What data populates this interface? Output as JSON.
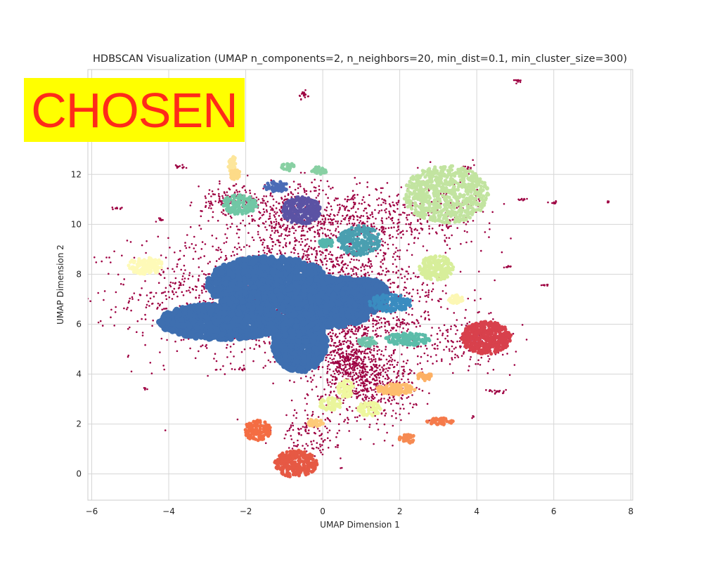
{
  "badge": {
    "text": "CHOSEN",
    "text_color": "#ff2a1a",
    "background": "#ffff00"
  },
  "chart_data": {
    "type": "scatter",
    "title": "HDBSCAN Visualization (UMAP n_components=2, n_neighbors=20, min_dist=0.1, min_cluster_size=300)",
    "xlabel": "UMAP Dimension 1",
    "ylabel": "UMAP Dimension 2",
    "xlim": [
      -6.1,
      8.05
    ],
    "ylim": [
      -1.05,
      16.2
    ],
    "xticks": [
      "−6",
      "−4",
      "−2",
      "0",
      "2",
      "4",
      "6",
      "8"
    ],
    "yticks": [
      "0",
      "2",
      "4",
      "6",
      "8",
      "10",
      "12"
    ],
    "grid": true,
    "noise_color": "#9e0142",
    "clusters": [
      {
        "color": "#3e6fb0",
        "blobs": [
          [
            -2.6,
            6.1,
            1.65,
            0.7,
            1.0
          ],
          [
            -1.4,
            7.6,
            1.6,
            1.1,
            1.2
          ],
          [
            0.2,
            6.9,
            1.3,
            1.0,
            1.0
          ],
          [
            -0.6,
            5.3,
            0.7,
            1.2,
            0.8
          ],
          [
            1.1,
            7.2,
            0.6,
            0.6,
            0.6
          ]
        ]
      },
      {
        "color": "#c2e4a0",
        "center": [
          3.2,
          11.2
        ],
        "size": [
          1.1,
          1.15
        ],
        "count": 700
      },
      {
        "color": "#5b53a4",
        "center": [
          -0.55,
          10.55
        ],
        "size": [
          0.5,
          0.55
        ],
        "count": 260
      },
      {
        "color": "#4a9fb0",
        "center": [
          0.95,
          9.35
        ],
        "size": [
          0.55,
          0.6
        ],
        "count": 220
      },
      {
        "color": "#3a8cc0",
        "center": [
          1.75,
          6.85
        ],
        "size": [
          0.55,
          0.35
        ],
        "count": 150
      },
      {
        "color": "#5cbca9",
        "center": [
          2.2,
          5.4
        ],
        "size": [
          0.6,
          0.25
        ],
        "count": 130
      },
      {
        "color": "#71c7a5",
        "center": [
          -2.15,
          10.8
        ],
        "size": [
          0.45,
          0.4
        ],
        "count": 140
      },
      {
        "color": "#88d0a3",
        "center": [
          -0.9,
          12.3
        ],
        "size": [
          0.18,
          0.15
        ],
        "count": 30
      },
      {
        "color": "#88d0a3",
        "center": [
          -0.1,
          12.15
        ],
        "size": [
          0.2,
          0.15
        ],
        "count": 30
      },
      {
        "color": "#55b6ad",
        "center": [
          0.1,
          9.25
        ],
        "size": [
          0.22,
          0.15
        ],
        "count": 40
      },
      {
        "color": "#6ec3aa",
        "center": [
          1.15,
          5.3
        ],
        "size": [
          0.25,
          0.2
        ],
        "count": 40
      },
      {
        "color": "#4b6cb6",
        "center": [
          -1.2,
          11.5
        ],
        "size": [
          0.3,
          0.22
        ],
        "count": 50
      },
      {
        "color": "#d7ee9a",
        "center": [
          2.95,
          8.25
        ],
        "size": [
          0.45,
          0.5
        ],
        "count": 170
      },
      {
        "color": "#d8414c",
        "center": [
          4.25,
          5.45
        ],
        "size": [
          0.65,
          0.65
        ],
        "count": 420
      },
      {
        "color": "#fefab8",
        "center": [
          -4.6,
          8.35
        ],
        "size": [
          0.45,
          0.35
        ],
        "count": 120
      },
      {
        "color": "#fcf7b4",
        "center": [
          3.45,
          7.0
        ],
        "size": [
          0.2,
          0.17
        ],
        "count": 35
      },
      {
        "color": "#fde69b",
        "center": [
          -2.35,
          12.4
        ],
        "size": [
          0.12,
          0.35
        ],
        "count": 35
      },
      {
        "color": "#fddb88",
        "center": [
          -2.3,
          12.0
        ],
        "size": [
          0.16,
          0.2
        ],
        "count": 30
      },
      {
        "color": "#fdbd6e",
        "center": [
          1.9,
          3.4
        ],
        "size": [
          0.5,
          0.22
        ],
        "count": 110
      },
      {
        "color": "#f0f8a0",
        "center": [
          0.6,
          3.4
        ],
        "size": [
          0.22,
          0.35
        ],
        "count": 60
      },
      {
        "color": "#eaf59c",
        "center": [
          0.2,
          2.8
        ],
        "size": [
          0.3,
          0.25
        ],
        "count": 70
      },
      {
        "color": "#eef79e",
        "center": [
          1.2,
          2.6
        ],
        "size": [
          0.3,
          0.28
        ],
        "count": 70
      },
      {
        "color": "#fdca79",
        "center": [
          -0.2,
          2.05
        ],
        "size": [
          0.22,
          0.14
        ],
        "count": 35
      },
      {
        "color": "#fdb063",
        "center": [
          2.65,
          3.9
        ],
        "size": [
          0.2,
          0.15
        ],
        "count": 35
      },
      {
        "color": "#f46d43",
        "center": [
          -1.7,
          1.75
        ],
        "size": [
          0.35,
          0.4
        ],
        "count": 110
      },
      {
        "color": "#f57a4a",
        "center": [
          3.05,
          2.1
        ],
        "size": [
          0.35,
          0.14
        ],
        "count": 40
      },
      {
        "color": "#f68a52",
        "center": [
          2.2,
          1.4
        ],
        "size": [
          0.22,
          0.18
        ],
        "count": 35
      },
      {
        "color": "#e65944",
        "center": [
          -0.7,
          0.4
        ],
        "size": [
          0.55,
          0.55
        ],
        "count": 260
      }
    ]
  }
}
